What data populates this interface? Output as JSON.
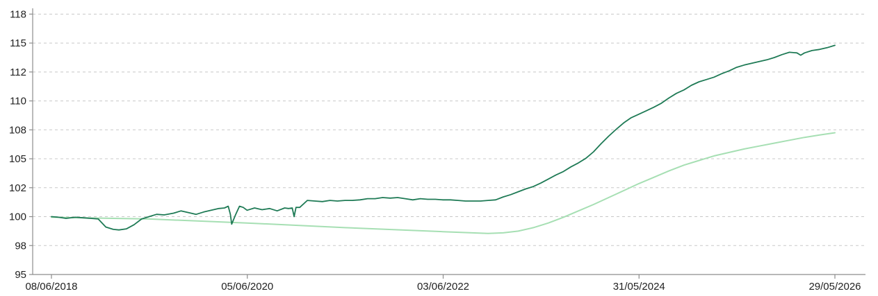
{
  "chart_data": {
    "type": "line",
    "title": "",
    "xlabel": "",
    "ylabel": "",
    "grid": "horizontal dashed",
    "legend": "none",
    "ylim": [
      95,
      118
    ],
    "xlim": [
      "2018-06-08",
      "2026-05-29"
    ],
    "y_ticks": [
      {
        "value": 95,
        "label": "95"
      },
      {
        "value": 97.5,
        "label": "98"
      },
      {
        "value": 100,
        "label": "100"
      },
      {
        "value": 102.5,
        "label": "102"
      },
      {
        "value": 105,
        "label": "105"
      },
      {
        "value": 107.5,
        "label": "108"
      },
      {
        "value": 110,
        "label": "110"
      },
      {
        "value": 112.5,
        "label": "112"
      },
      {
        "value": 115,
        "label": "115"
      },
      {
        "value": 117.5,
        "label": "118"
      }
    ],
    "x_ticks": [
      {
        "value": "2018-06-08",
        "label": "08/06/2018"
      },
      {
        "value": "2020-06-05",
        "label": "05/06/2020"
      },
      {
        "value": "2022-06-03",
        "label": "03/06/2022"
      },
      {
        "value": "2024-05-31",
        "label": "31/05/2024"
      },
      {
        "value": "2026-05-29",
        "label": "29/05/2026"
      }
    ],
    "series": [
      {
        "color": "#1e7a55",
        "points": [
          [
            "2018-06-08",
            100.0
          ],
          [
            "2018-07-05",
            99.95
          ],
          [
            "2018-08-01",
            99.85
          ],
          [
            "2018-09-06",
            99.95
          ],
          [
            "2018-10-04",
            99.9
          ],
          [
            "2018-11-01",
            99.85
          ],
          [
            "2018-11-29",
            99.8
          ],
          [
            "2018-12-27",
            99.1
          ],
          [
            "2019-01-24",
            98.9
          ],
          [
            "2019-02-14",
            98.85
          ],
          [
            "2019-03-14",
            98.95
          ],
          [
            "2019-04-11",
            99.3
          ],
          [
            "2019-05-09",
            99.8
          ],
          [
            "2019-06-06",
            100.0
          ],
          [
            "2019-07-04",
            100.2
          ],
          [
            "2019-08-01",
            100.15
          ],
          [
            "2019-09-05",
            100.3
          ],
          [
            "2019-10-03",
            100.5
          ],
          [
            "2019-10-31",
            100.35
          ],
          [
            "2019-11-28",
            100.2
          ],
          [
            "2019-12-26",
            100.4
          ],
          [
            "2020-01-23",
            100.55
          ],
          [
            "2020-02-20",
            100.7
          ],
          [
            "2020-03-12",
            100.75
          ],
          [
            "2020-03-26",
            100.9
          ],
          [
            "2020-04-03",
            100.2
          ],
          [
            "2020-04-08",
            99.35
          ],
          [
            "2020-04-23",
            100.2
          ],
          [
            "2020-05-07",
            100.9
          ],
          [
            "2020-05-21",
            100.8
          ],
          [
            "2020-06-04",
            100.55
          ],
          [
            "2020-07-02",
            100.75
          ],
          [
            "2020-07-30",
            100.6
          ],
          [
            "2020-08-27",
            100.7
          ],
          [
            "2020-09-24",
            100.5
          ],
          [
            "2020-10-22",
            100.75
          ],
          [
            "2020-11-05",
            100.7
          ],
          [
            "2020-11-19",
            100.75
          ],
          [
            "2020-11-26",
            100.0
          ],
          [
            "2020-12-03",
            100.8
          ],
          [
            "2020-12-17",
            100.8
          ],
          [
            "2021-01-14",
            101.4
          ],
          [
            "2021-02-11",
            101.35
          ],
          [
            "2021-03-11",
            101.3
          ],
          [
            "2021-04-08",
            101.4
          ],
          [
            "2021-05-06",
            101.35
          ],
          [
            "2021-06-03",
            101.4
          ],
          [
            "2021-07-01",
            101.4
          ],
          [
            "2021-07-29",
            101.45
          ],
          [
            "2021-08-26",
            101.55
          ],
          [
            "2021-09-23",
            101.55
          ],
          [
            "2021-10-21",
            101.65
          ],
          [
            "2021-11-18",
            101.6
          ],
          [
            "2021-12-16",
            101.65
          ],
          [
            "2022-01-13",
            101.55
          ],
          [
            "2022-02-10",
            101.45
          ],
          [
            "2022-03-10",
            101.55
          ],
          [
            "2022-04-07",
            101.5
          ],
          [
            "2022-05-05",
            101.5
          ],
          [
            "2022-06-02",
            101.45
          ],
          [
            "2022-06-30",
            101.45
          ],
          [
            "2022-07-28",
            101.4
          ],
          [
            "2022-08-25",
            101.35
          ],
          [
            "2022-09-22",
            101.35
          ],
          [
            "2022-10-20",
            101.35
          ],
          [
            "2022-11-17",
            101.4
          ],
          [
            "2022-12-15",
            101.45
          ],
          [
            "2023-01-12",
            101.7
          ],
          [
            "2023-02-09",
            101.9
          ],
          [
            "2023-03-09",
            102.15
          ],
          [
            "2023-04-06",
            102.4
          ],
          [
            "2023-05-04",
            102.6
          ],
          [
            "2023-06-01",
            102.9
          ],
          [
            "2023-06-29",
            103.25
          ],
          [
            "2023-07-27",
            103.6
          ],
          [
            "2023-08-24",
            103.9
          ],
          [
            "2023-09-21",
            104.3
          ],
          [
            "2023-10-19",
            104.65
          ],
          [
            "2023-11-16",
            105.05
          ],
          [
            "2023-12-14",
            105.6
          ],
          [
            "2024-01-11",
            106.3
          ],
          [
            "2024-02-08",
            106.95
          ],
          [
            "2024-03-07",
            107.55
          ],
          [
            "2024-04-04",
            108.1
          ],
          [
            "2024-05-02",
            108.55
          ],
          [
            "2024-05-30",
            108.85
          ],
          [
            "2024-06-27",
            109.15
          ],
          [
            "2024-07-25",
            109.45
          ],
          [
            "2024-08-22",
            109.8
          ],
          [
            "2024-09-19",
            110.25
          ],
          [
            "2024-10-17",
            110.65
          ],
          [
            "2024-11-14",
            110.95
          ],
          [
            "2024-12-12",
            111.35
          ],
          [
            "2025-01-09",
            111.65
          ],
          [
            "2025-02-06",
            111.85
          ],
          [
            "2025-03-06",
            112.05
          ],
          [
            "2025-04-03",
            112.35
          ],
          [
            "2025-05-01",
            112.6
          ],
          [
            "2025-05-29",
            112.9
          ],
          [
            "2025-06-26",
            113.1
          ],
          [
            "2025-07-24",
            113.25
          ],
          [
            "2025-08-21",
            113.4
          ],
          [
            "2025-09-18",
            113.55
          ],
          [
            "2025-10-16",
            113.75
          ],
          [
            "2025-11-13",
            114.0
          ],
          [
            "2025-12-11",
            114.2
          ],
          [
            "2026-01-08",
            114.15
          ],
          [
            "2026-01-22",
            113.95
          ],
          [
            "2026-02-05",
            114.15
          ],
          [
            "2026-03-05",
            114.35
          ],
          [
            "2026-04-02",
            114.45
          ],
          [
            "2026-04-30",
            114.6
          ],
          [
            "2026-05-29",
            114.8
          ]
        ]
      },
      {
        "color": "#a6dfb3",
        "points": [
          [
            "2018-06-08",
            99.95
          ],
          [
            "2019-06-06",
            99.8
          ],
          [
            "2020-06-04",
            99.45
          ],
          [
            "2021-06-03",
            99.05
          ],
          [
            "2022-06-02",
            98.7
          ],
          [
            "2022-11-17",
            98.55
          ],
          [
            "2023-01-12",
            98.6
          ],
          [
            "2023-03-09",
            98.75
          ],
          [
            "2023-05-04",
            99.05
          ],
          [
            "2023-06-29",
            99.45
          ],
          [
            "2023-08-24",
            99.95
          ],
          [
            "2023-10-19",
            100.5
          ],
          [
            "2023-12-14",
            101.05
          ],
          [
            "2024-02-08",
            101.65
          ],
          [
            "2024-04-04",
            102.25
          ],
          [
            "2024-05-30",
            102.85
          ],
          [
            "2024-07-25",
            103.4
          ],
          [
            "2024-09-19",
            103.95
          ],
          [
            "2024-11-14",
            104.45
          ],
          [
            "2025-01-09",
            104.85
          ],
          [
            "2025-03-06",
            105.25
          ],
          [
            "2025-05-01",
            105.55
          ],
          [
            "2025-06-26",
            105.85
          ],
          [
            "2025-08-21",
            106.1
          ],
          [
            "2025-10-16",
            106.35
          ],
          [
            "2025-12-11",
            106.6
          ],
          [
            "2026-02-05",
            106.85
          ],
          [
            "2026-04-02",
            107.05
          ],
          [
            "2026-05-29",
            107.25
          ]
        ]
      }
    ]
  }
}
